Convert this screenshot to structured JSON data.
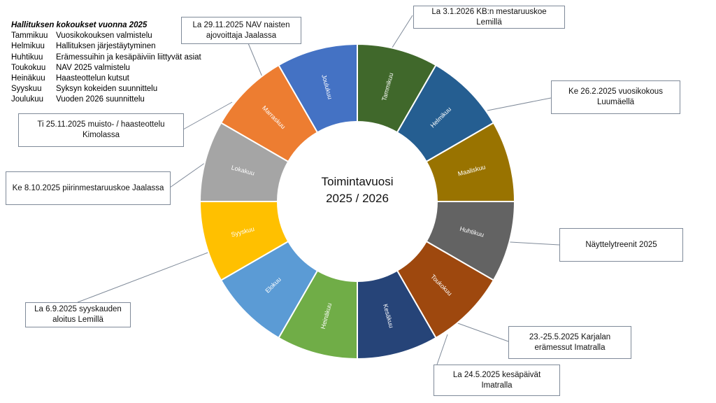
{
  "legend": {
    "title": "Hallituksen kokoukset vuonna 2025",
    "rows": [
      {
        "month": "Tammikuu",
        "text": "Vuosikokouksen valmistelu"
      },
      {
        "month": "Helmikuu",
        "text": "Hallituksen järjestäytyminen"
      },
      {
        "month": "Huhtikuu",
        "text": "Erämessuihin ja kesäpäiviin liittyvät asiat"
      },
      {
        "month": "Toukokuu",
        "text": "NAV 2025 valmistelu"
      },
      {
        "month": "Heinäkuu",
        "text": "Haasteottelun kutsut"
      },
      {
        "month": "Syyskuu",
        "text": "Syksyn kokeiden suunnittelu"
      },
      {
        "month": "Joulukuu",
        "text": "Vuoden 2026 suunnittelu"
      }
    ]
  },
  "center": {
    "line1": "Toimintavuosi",
    "line2": "2025 / 2026"
  },
  "chart_data": {
    "type": "pie",
    "donut": true,
    "categories": [
      "Tammikuu",
      "Helmikuu",
      "Maaliskuu",
      "Huhtikuu",
      "Toukokuu",
      "Kesäkuu",
      "Heinäkuu",
      "Elokuu",
      "Syyskuu",
      "Lokakuu",
      "Marraskuu",
      "Joulukuu"
    ],
    "values": [
      1,
      1,
      1,
      1,
      1,
      1,
      1,
      1,
      1,
      1,
      1,
      1
    ],
    "colors": [
      "#40682b",
      "#255e91",
      "#997300",
      "#636363",
      "#9e480e",
      "#264478",
      "#70ad47",
      "#5b9bd5",
      "#ffc000",
      "#a5a5a5",
      "#ed7d31",
      "#4472c4"
    ]
  },
  "callouts": [
    {
      "text": "La 29.11.2025 NAV naisten ajovoittaja Jaalassa"
    },
    {
      "text": "La 3.1.2026 KB:n mestaruuskoe Lemillä"
    },
    {
      "text": "Ke 26.2.2025 vuosikokous Luumäellä"
    },
    {
      "text": "Ti 25.11.2025 muisto- / haasteottelu Kimolassa"
    },
    {
      "text": "Ke 8.10.2025 piirinmestaruuskoe Jaalassa"
    },
    {
      "text": "Näyttelytreenit 2025"
    },
    {
      "text": "La 6.9.2025 syyskauden aloitus Lemillä"
    },
    {
      "text": "23.-25.5.2025 Karjalan erämessut Imatralla"
    },
    {
      "text": "La 24.5.2025 kesäpäivät Imatralla"
    }
  ]
}
